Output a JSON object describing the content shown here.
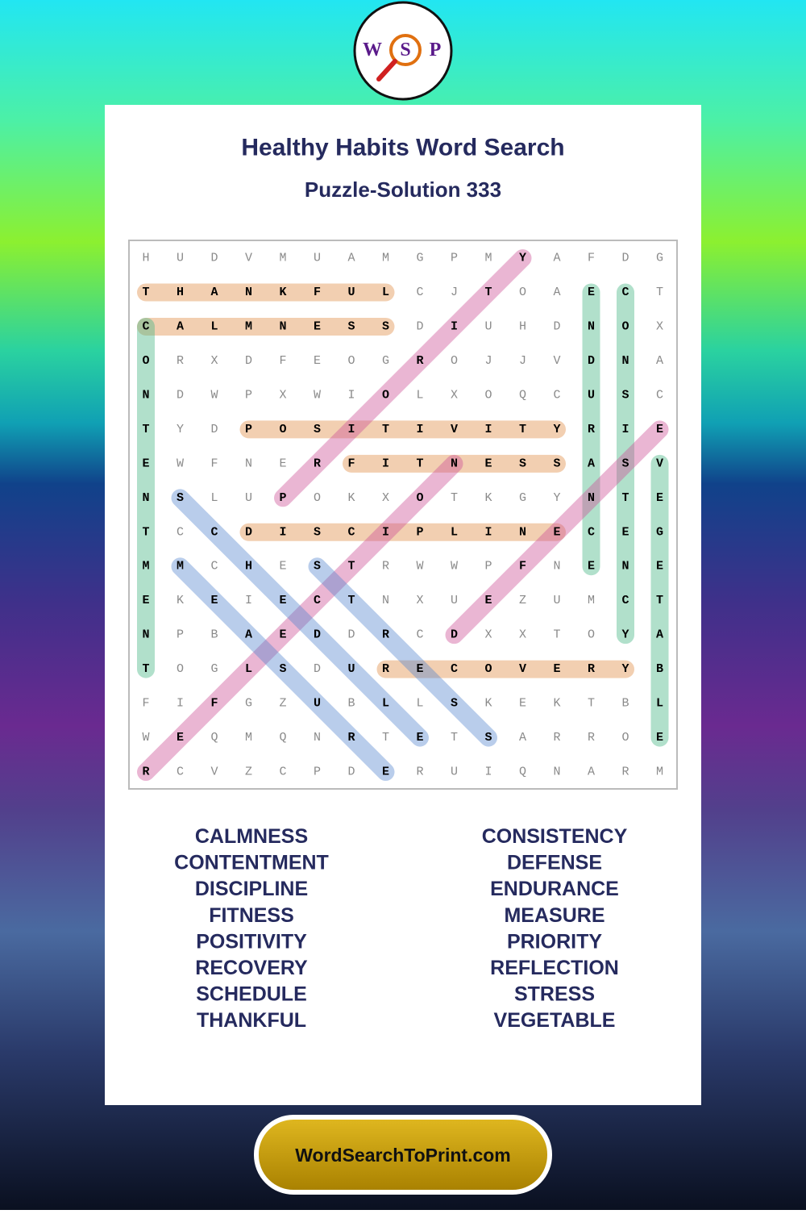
{
  "logo": {
    "letters": [
      "W",
      "S",
      "P"
    ]
  },
  "header": {
    "title": "Healthy Habits Word Search",
    "subtitle": "Puzzle-Solution 333"
  },
  "grid": {
    "rows": [
      [
        "H",
        "U",
        "D",
        "V",
        "M",
        "U",
        "A",
        "M",
        "G",
        "P",
        "M",
        "Y",
        "A",
        "F",
        "D",
        "G"
      ],
      [
        "T",
        "H",
        "A",
        "N",
        "K",
        "F",
        "U",
        "L",
        "C",
        "J",
        "T",
        "O",
        "A",
        "E",
        "C",
        "T"
      ],
      [
        "C",
        "A",
        "L",
        "M",
        "N",
        "E",
        "S",
        "S",
        "D",
        "I",
        "U",
        "H",
        "D",
        "N",
        "O",
        "X"
      ],
      [
        "O",
        "R",
        "X",
        "D",
        "F",
        "E",
        "O",
        "G",
        "R",
        "O",
        "J",
        "J",
        "V",
        "D",
        "N",
        "A"
      ],
      [
        "N",
        "D",
        "W",
        "P",
        "X",
        "W",
        "I",
        "O",
        "L",
        "X",
        "O",
        "Q",
        "C",
        "U",
        "S",
        "C"
      ],
      [
        "T",
        "Y",
        "D",
        "P",
        "O",
        "S",
        "I",
        "T",
        "I",
        "V",
        "I",
        "T",
        "Y",
        "R",
        "I",
        "E"
      ],
      [
        "E",
        "W",
        "F",
        "N",
        "E",
        "R",
        "F",
        "I",
        "T",
        "N",
        "E",
        "S",
        "S",
        "A",
        "S",
        "V"
      ],
      [
        "N",
        "S",
        "L",
        "U",
        "P",
        "O",
        "K",
        "X",
        "O",
        "T",
        "K",
        "G",
        "Y",
        "N",
        "T",
        "E"
      ],
      [
        "T",
        "C",
        "C",
        "D",
        "I",
        "S",
        "C",
        "I",
        "P",
        "L",
        "I",
        "N",
        "E",
        "C",
        "E",
        "G"
      ],
      [
        "M",
        "M",
        "C",
        "H",
        "E",
        "S",
        "T",
        "R",
        "W",
        "W",
        "P",
        "F",
        "N",
        "E",
        "N",
        "E"
      ],
      [
        "E",
        "K",
        "E",
        "I",
        "E",
        "C",
        "T",
        "N",
        "X",
        "U",
        "E",
        "Z",
        "U",
        "M",
        "C",
        "T"
      ],
      [
        "N",
        "P",
        "B",
        "A",
        "E",
        "D",
        "D",
        "R",
        "C",
        "D",
        "X",
        "X",
        "T",
        "O",
        "Y",
        "A"
      ],
      [
        "T",
        "O",
        "G",
        "L",
        "S",
        "D",
        "U",
        "R",
        "E",
        "C",
        "O",
        "V",
        "E",
        "R",
        "Y",
        "B"
      ],
      [
        "F",
        "I",
        "F",
        "G",
        "Z",
        "U",
        "B",
        "L",
        "L",
        "S",
        "K",
        "E",
        "K",
        "T",
        "B",
        "L"
      ],
      [
        "W",
        "E",
        "Q",
        "M",
        "Q",
        "N",
        "R",
        "T",
        "E",
        "T",
        "S",
        "A",
        "R",
        "R",
        "O",
        "E"
      ],
      [
        "R",
        "C",
        "V",
        "Z",
        "C",
        "P",
        "D",
        "E",
        "R",
        "U",
        "I",
        "Q",
        "N",
        "A",
        "R",
        "M"
      ]
    ]
  },
  "word_list": {
    "left": [
      "CALMNESS",
      "CONTENTMENT",
      "DISCIPLINE",
      "FITNESS",
      "POSITIVITY",
      "RECOVERY",
      "SCHEDULE",
      "THANKFUL"
    ],
    "right": [
      "CONSISTENCY",
      "DEFENSE",
      "ENDURANCE",
      "MEASURE",
      "PRIORITY",
      "REFLECTION",
      "STRESS",
      "VEGETABLE"
    ]
  },
  "footer": {
    "site": "WordSearchToPrint.com"
  }
}
